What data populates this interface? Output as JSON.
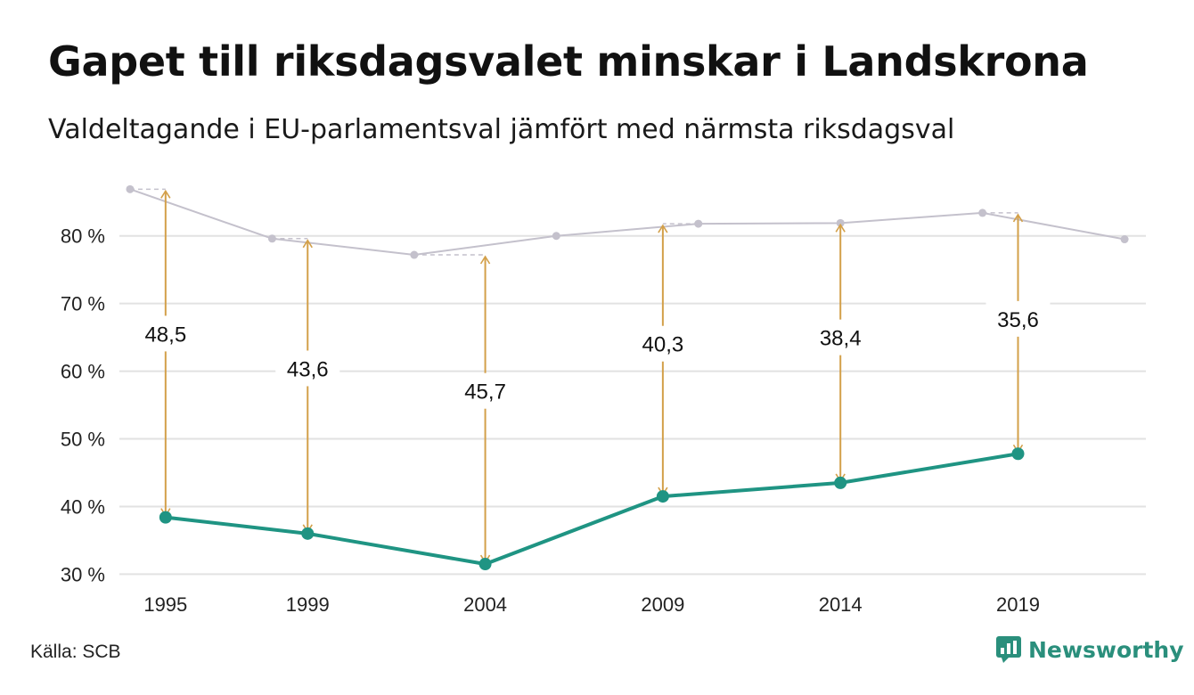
{
  "header": {
    "title": "Gapet till riksdagsvalet minskar i Landskrona",
    "subtitle": "Valdeltagande i EU-parlamentsval jämfört med närmsta riksdagsval"
  },
  "footer": {
    "source": "Källa: SCB",
    "brand": "Newsworthy"
  },
  "colors": {
    "eu_line": "#1f9483",
    "riksdag_line": "#c4c1cc",
    "gap_arrow": "#d3a04a",
    "grid": "#e2e2e2"
  },
  "chart_data": {
    "type": "line",
    "x_tick_labels": [
      "1995",
      "1999",
      "2004",
      "2009",
      "2014",
      "2019"
    ],
    "y_tick_labels": [
      "30 %",
      "40 %",
      "50 %",
      "60 %",
      "70 %",
      "80 %"
    ],
    "y_ticks": [
      30,
      40,
      50,
      60,
      70,
      80
    ],
    "ylim": [
      29,
      88
    ],
    "xlim": [
      1993.7,
      2022.6
    ],
    "grid": true,
    "series": [
      {
        "role": "riksdag",
        "x": [
          1994,
          1998,
          2002,
          2006,
          2010,
          2014,
          2018,
          2022
        ],
        "values": [
          86.9,
          79.6,
          77.2,
          80.0,
          81.8,
          81.9,
          83.4,
          79.5
        ]
      },
      {
        "role": "eu",
        "x": [
          1995,
          1999,
          2004,
          2009,
          2014,
          2019
        ],
        "values": [
          38.4,
          36.0,
          31.5,
          41.5,
          43.5,
          47.8
        ]
      }
    ],
    "gaps": [
      {
        "x": 1995,
        "compare_value": 86.9,
        "label": "48,5"
      },
      {
        "x": 1999,
        "compare_value": 79.6,
        "label": "43,6"
      },
      {
        "x": 2004,
        "compare_value": 77.2,
        "label": "45,7"
      },
      {
        "x": 2009,
        "compare_value": 81.8,
        "label": "40,3"
      },
      {
        "x": 2014,
        "compare_value": 81.9,
        "label": "38,4"
      },
      {
        "x": 2019,
        "compare_value": 83.4,
        "label": "35,6"
      }
    ]
  }
}
